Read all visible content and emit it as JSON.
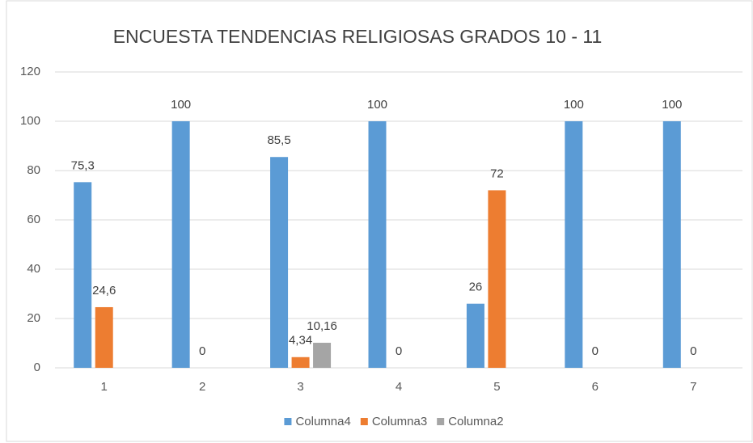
{
  "chart_data": {
    "type": "bar",
    "title": "ENCUESTA TENDENCIAS RELIGIOSAS GRADOS 10 - 11",
    "categories": [
      "1",
      "2",
      "3",
      "4",
      "5",
      "6",
      "7"
    ],
    "series": [
      {
        "name": "Columna4",
        "color": "#5b9bd5",
        "values": [
          75.3,
          100,
          85.5,
          100,
          26,
          100,
          100
        ],
        "value_labels": [
          "75,3",
          "100",
          "85,5",
          "100",
          "26",
          "100",
          "100"
        ]
      },
      {
        "name": "Columna3",
        "color": "#ed7d31",
        "values": [
          24.6,
          0,
          4.34,
          0,
          72,
          0,
          0
        ],
        "value_labels": [
          "24,6",
          "0",
          "4,34",
          "0",
          "72",
          "0",
          "0"
        ]
      },
      {
        "name": "Columna2",
        "color": "#a5a5a5",
        "values": [
          null,
          null,
          10.16,
          null,
          null,
          null,
          null
        ],
        "value_labels": [
          null,
          null,
          "10,16",
          null,
          null,
          null,
          null
        ]
      }
    ],
    "ylim": [
      0,
      120
    ],
    "yticks": [
      0,
      20,
      40,
      60,
      80,
      100,
      120
    ],
    "grid": true,
    "legend": "bottom"
  }
}
